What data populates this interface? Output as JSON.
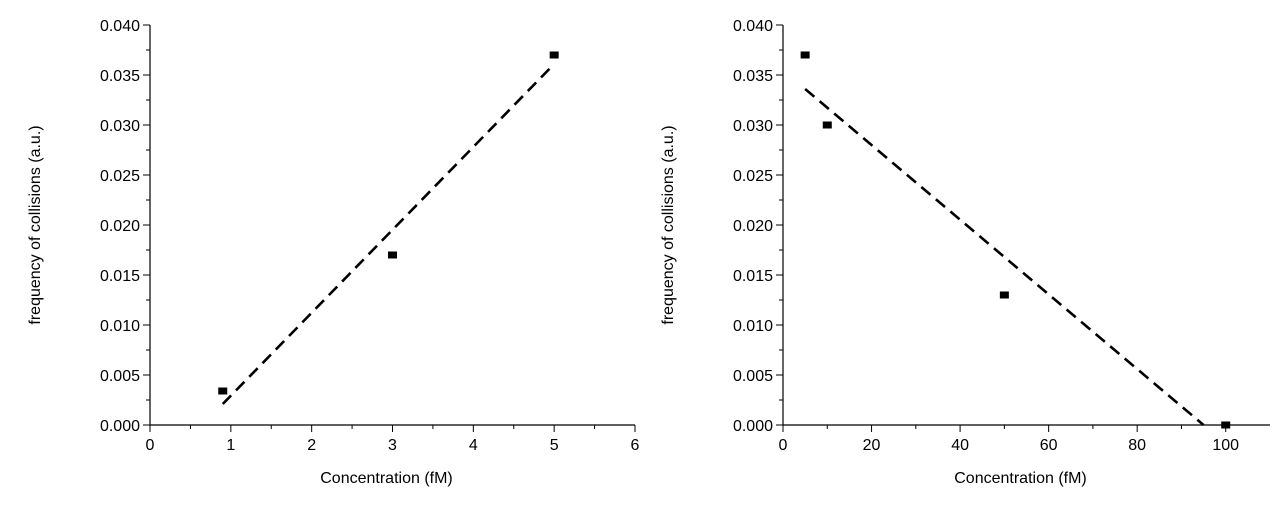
{
  "chart_data": [
    {
      "type": "scatter",
      "xlabel": "Concentration (fM)",
      "ylabel": "frequency of collisions (a.u.)",
      "xlim": [
        0,
        6
      ],
      "ylim": [
        0,
        0.04
      ],
      "xticks": [
        0,
        1,
        2,
        3,
        4,
        5,
        6
      ],
      "xtick_labels": [
        "0",
        "1",
        "2",
        "3",
        "4",
        "5",
        "6"
      ],
      "yticks": [
        0,
        0.005,
        0.01,
        0.015,
        0.02,
        0.025,
        0.03,
        0.035,
        0.04
      ],
      "ytick_labels": [
        "0.000",
        "0.005",
        "0.010",
        "0.015",
        "0.020",
        "0.025",
        "0.030",
        "0.035",
        "0.040"
      ],
      "points": [
        {
          "x": 0.9,
          "y": 0.0034
        },
        {
          "x": 3.0,
          "y": 0.017
        },
        {
          "x": 5.0,
          "y": 0.037
        }
      ],
      "fit_line": {
        "style": "dashed",
        "from": {
          "x": 0.9,
          "y": 0.0021
        },
        "to": {
          "x": 5.0,
          "y": 0.0361
        }
      },
      "grid": false,
      "legend": "none"
    },
    {
      "type": "scatter",
      "xlabel": "Concentration (fM)",
      "ylabel": "frequency of collisions (a.u.)",
      "xlim": [
        0,
        110
      ],
      "ylim": [
        0,
        0.04
      ],
      "xticks": [
        0,
        20,
        40,
        60,
        80,
        100
      ],
      "xtick_labels": [
        "0",
        "20",
        "40",
        "60",
        "80",
        "100"
      ],
      "yticks": [
        0,
        0.005,
        0.01,
        0.015,
        0.02,
        0.025,
        0.03,
        0.035,
        0.04
      ],
      "ytick_labels": [
        "0.000",
        "0.005",
        "0.010",
        "0.015",
        "0.020",
        "0.025",
        "0.030",
        "0.035",
        "0.040"
      ],
      "points": [
        {
          "x": 5,
          "y": 0.037
        },
        {
          "x": 10,
          "y": 0.03
        },
        {
          "x": 50,
          "y": 0.013
        },
        {
          "x": 100,
          "y": 0.0
        }
      ],
      "fit_line": {
        "style": "dashed",
        "from": {
          "x": 5,
          "y": 0.0336
        },
        "to": {
          "x": 95,
          "y": 0.0
        }
      },
      "grid": false,
      "legend": "none"
    }
  ]
}
